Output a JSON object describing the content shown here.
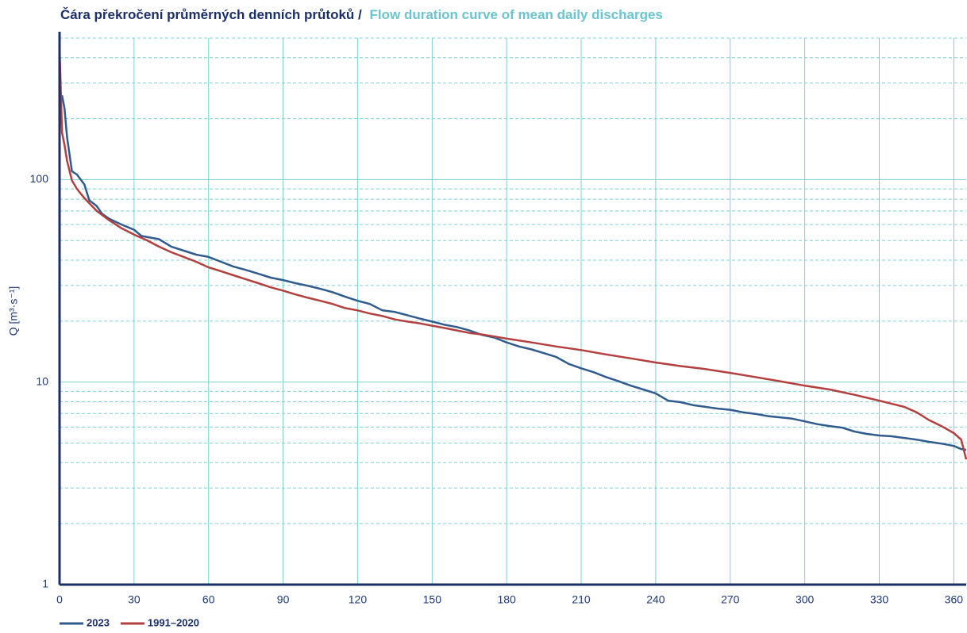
{
  "chart_data": {
    "type": "line",
    "title": "Čára překročení průměrných denních průtoků /",
    "subtitle": "Flow duration curve of mean daily discharges",
    "y_label": "Q [m³·s⁻¹]",
    "log_y": true,
    "grid": true,
    "xlim": [
      0,
      365
    ],
    "xticks": [
      0,
      30,
      60,
      90,
      120,
      150,
      180,
      210,
      240,
      270,
      300,
      330,
      360
    ],
    "ylim": [
      1,
      500
    ],
    "yticks": [
      1,
      10,
      100
    ],
    "yminor_ticks": [
      2,
      3,
      4,
      5,
      6,
      7,
      8,
      9,
      20,
      30,
      40,
      50,
      60,
      70,
      80,
      90,
      200,
      300,
      400,
      500
    ],
    "legend": "bottom-left",
    "series": [
      {
        "name": "2023",
        "color": "#2f5b8e",
        "x": [
          1,
          2,
          3,
          5,
          7,
          10,
          12,
          15,
          17,
          20,
          25,
          30,
          33,
          40,
          45,
          50,
          55,
          60,
          65,
          70,
          75,
          80,
          85,
          90,
          95,
          100,
          105,
          110,
          115,
          120,
          125,
          130,
          135,
          140,
          145,
          150,
          155,
          160,
          165,
          170,
          175,
          180,
          185,
          190,
          195,
          200,
          205,
          210,
          215,
          220,
          225,
          230,
          235,
          240,
          245,
          250,
          255,
          260,
          265,
          270,
          275,
          280,
          285,
          290,
          295,
          300,
          305,
          310,
          315,
          320,
          325,
          330,
          335,
          340,
          345,
          350,
          355,
          360,
          363,
          365
        ],
        "values": [
          261,
          224,
          163,
          110,
          106,
          94.6,
          79,
          74,
          68,
          64,
          60,
          56.5,
          52.7,
          50.8,
          46.7,
          44.6,
          42.6,
          41.5,
          39.3,
          37.2,
          35.8,
          34.3,
          32.8,
          31.9,
          30.8,
          29.9,
          28.9,
          27.8,
          26.4,
          25.2,
          24.3,
          22.6,
          22.2,
          21.4,
          20.6,
          19.9,
          19.2,
          18.7,
          18.0,
          17.1,
          16.6,
          15.7,
          15.0,
          14.5,
          13.9,
          13.3,
          12.3,
          11.7,
          11.2,
          10.6,
          10.1,
          9.6,
          9.2,
          8.8,
          8.1,
          7.96,
          7.7,
          7.55,
          7.4,
          7.3,
          7.1,
          6.97,
          6.8,
          6.7,
          6.6,
          6.4,
          6.2,
          6.07,
          5.96,
          5.7,
          5.55,
          5.45,
          5.4,
          5.3,
          5.2,
          5.07,
          4.97,
          4.84,
          4.67,
          4.63
        ]
      },
      {
        "name": "1991–2020",
        "color": "#b3403f",
        "x": [
          0,
          1,
          2,
          3,
          5,
          7,
          10,
          15,
          20,
          25,
          30,
          35,
          40,
          45,
          50,
          55,
          60,
          65,
          70,
          75,
          80,
          85,
          90,
          95,
          100,
          105,
          110,
          115,
          120,
          125,
          130,
          135,
          140,
          145,
          150,
          155,
          160,
          165,
          170,
          175,
          180,
          190,
          200,
          210,
          220,
          230,
          240,
          250,
          260,
          270,
          280,
          290,
          300,
          310,
          320,
          330,
          340,
          345,
          350,
          355,
          360,
          363,
          365
        ],
        "values": [
          454,
          171,
          148,
          124,
          99,
          90,
          81,
          70,
          63,
          57.5,
          53.5,
          50.3,
          46.7,
          43.8,
          41.5,
          39.3,
          36.9,
          35.3,
          33.7,
          32.2,
          30.8,
          29.4,
          28.3,
          27.1,
          26.1,
          25.2,
          24.3,
          23.2,
          22.6,
          21.8,
          21.2,
          20.4,
          19.9,
          19.5,
          19.0,
          18.5,
          18.0,
          17.5,
          17.2,
          16.8,
          16.4,
          15.7,
          15.0,
          14.4,
          13.7,
          13.1,
          12.5,
          12.0,
          11.6,
          11.1,
          10.6,
          10.1,
          9.6,
          9.2,
          8.66,
          8.1,
          7.55,
          7.1,
          6.5,
          6.07,
          5.6,
          5.2,
          4.15
        ]
      }
    ]
  }
}
